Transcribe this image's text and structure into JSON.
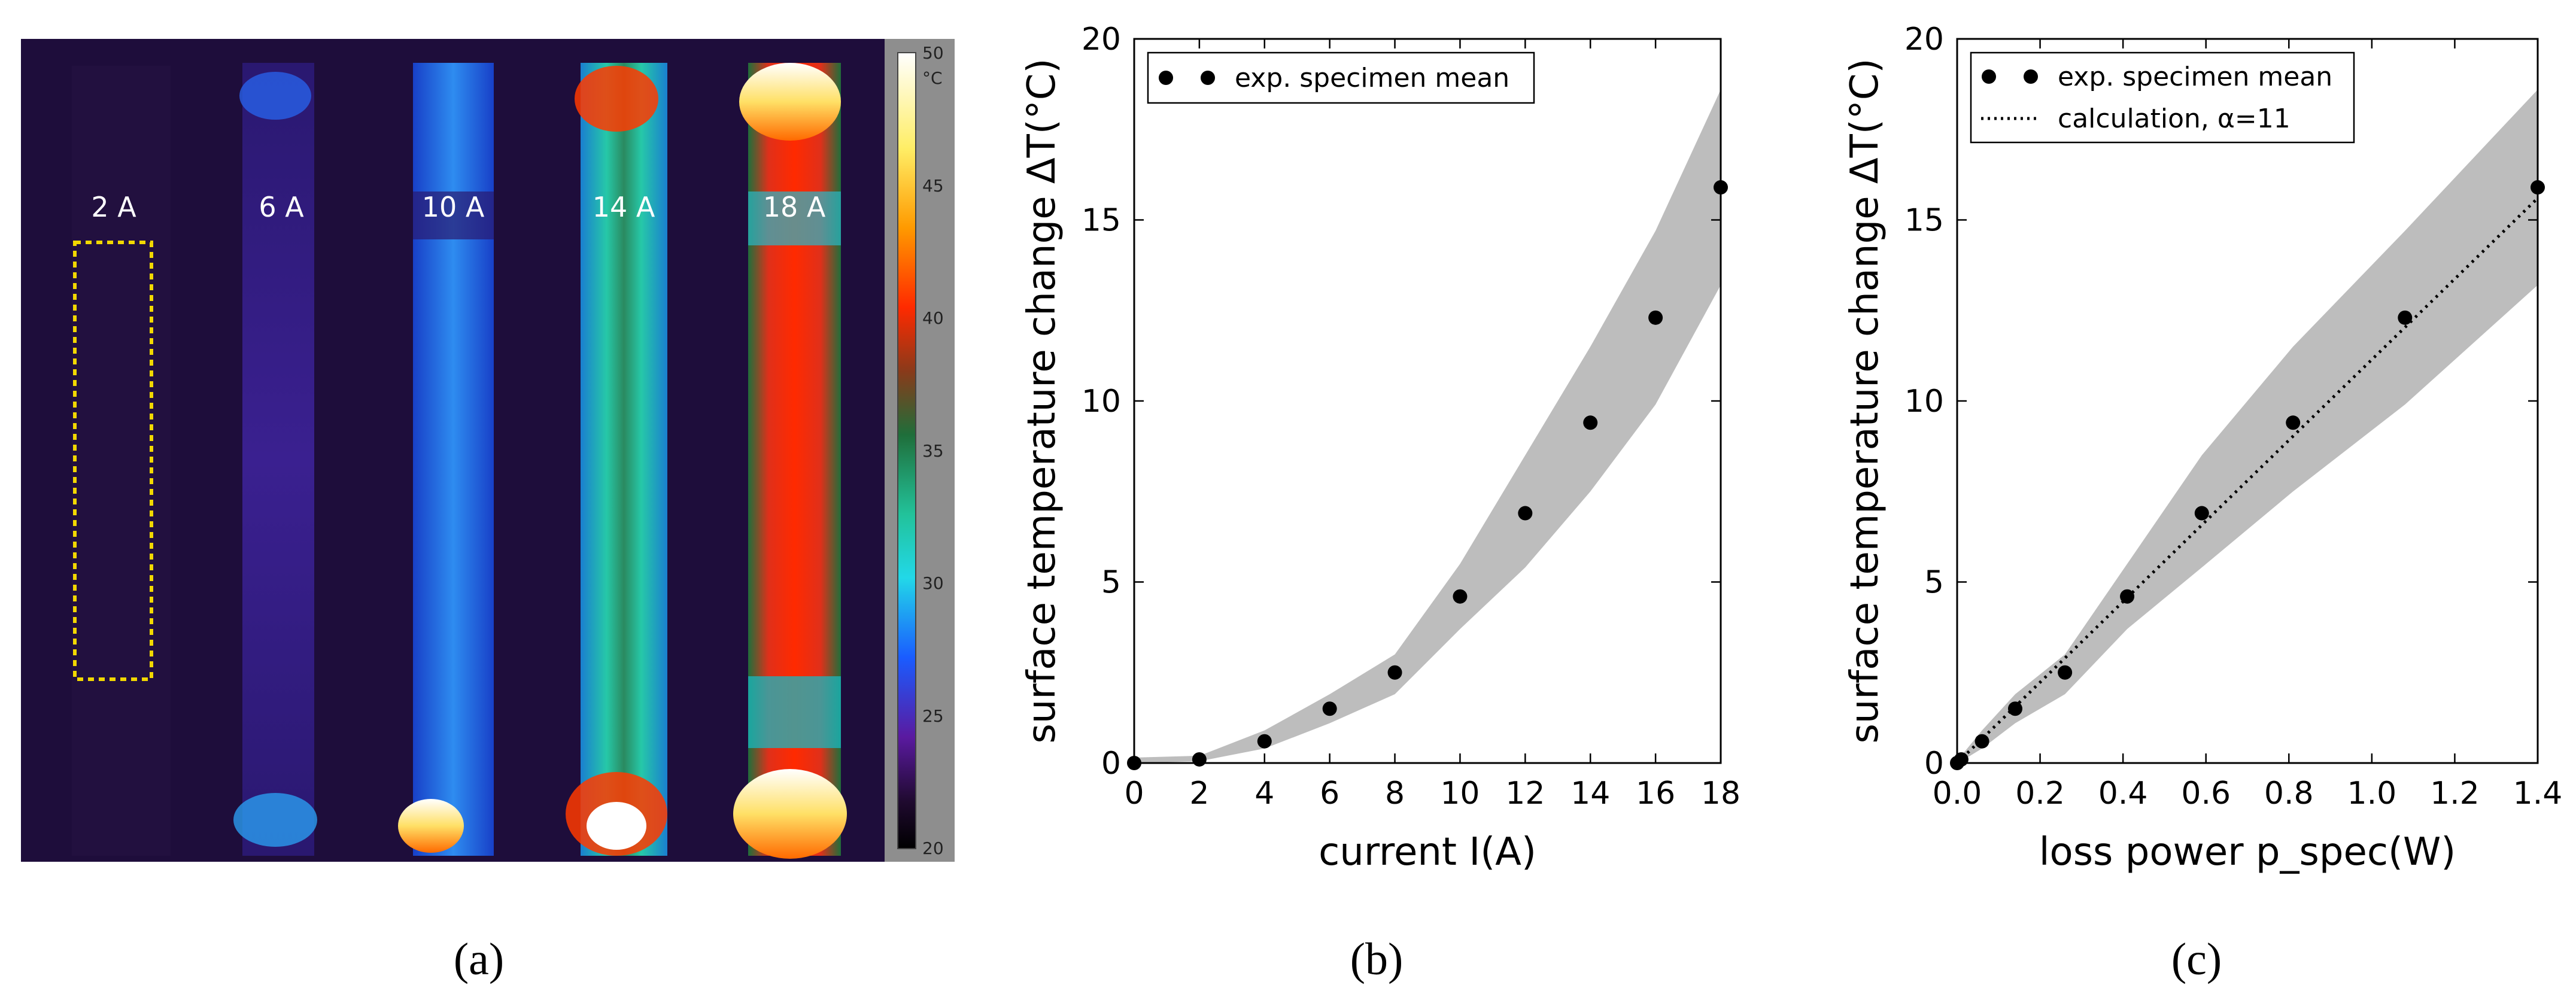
{
  "panel_a": {
    "currents": [
      "2 A",
      "6 A",
      "10 A",
      "14 A",
      "18 A"
    ],
    "colorbar": {
      "ticks": [
        "50",
        "45",
        "40",
        "35",
        "30",
        "25",
        "20"
      ],
      "unit": "°C"
    },
    "caption": "(a)"
  },
  "chart_data": [
    {
      "type": "scatter",
      "caption": "(b)",
      "xlabel": "current I(A)",
      "ylabel": "surface temperature change ΔT(°C)",
      "xlim": [
        0,
        18
      ],
      "ylim": [
        0,
        20
      ],
      "xticks": [
        "0",
        "2",
        "4",
        "6",
        "8",
        "10",
        "12",
        "14",
        "16",
        "18"
      ],
      "yticks": [
        "0",
        "5",
        "10",
        "15",
        "20"
      ],
      "legend": [
        "exp. specimen mean"
      ],
      "series": [
        {
          "name": "exp. specimen mean",
          "x": [
            0,
            2,
            4,
            6,
            8,
            10,
            12,
            14,
            16,
            18
          ],
          "y": [
            0.0,
            0.1,
            0.6,
            1.5,
            2.5,
            4.6,
            6.9,
            9.4,
            12.3,
            15.9
          ]
        }
      ],
      "band": {
        "x": [
          0,
          2,
          4,
          6,
          8,
          10,
          12,
          14,
          16,
          18
        ],
        "upper": [
          0.15,
          0.2,
          0.9,
          1.9,
          3.0,
          5.5,
          8.5,
          11.5,
          14.7,
          18.6
        ],
        "lower": [
          0.0,
          0.05,
          0.4,
          1.1,
          1.9,
          3.7,
          5.4,
          7.5,
          9.9,
          13.2
        ]
      }
    },
    {
      "type": "scatter",
      "caption": "(c)",
      "xlabel": "loss power p_spec(W)",
      "ylabel": "surface temperature change ΔT(°C)",
      "xlim": [
        0.0,
        1.4
      ],
      "ylim": [
        0,
        20
      ],
      "xticks": [
        "0.0",
        "0.2",
        "0.4",
        "0.6",
        "0.8",
        "1.0",
        "1.2",
        "1.4"
      ],
      "yticks": [
        "0",
        "5",
        "10",
        "15",
        "20"
      ],
      "legend": [
        "exp. specimen mean",
        "calculation, α=11"
      ],
      "series": [
        {
          "name": "exp. specimen mean",
          "x": [
            0.0,
            0.01,
            0.06,
            0.14,
            0.26,
            0.41,
            0.59,
            0.81,
            1.08,
            1.4
          ],
          "y": [
            0.0,
            0.1,
            0.6,
            1.5,
            2.5,
            4.6,
            6.9,
            9.4,
            12.3,
            15.9
          ]
        },
        {
          "name": "calculation, α=11",
          "style": "dotted",
          "x": [
            0.0,
            1.4
          ],
          "y": [
            0.0,
            15.6
          ]
        }
      ],
      "band": {
        "x": [
          0.0,
          0.01,
          0.06,
          0.14,
          0.26,
          0.41,
          0.59,
          0.81,
          1.08,
          1.4
        ],
        "upper": [
          0.15,
          0.2,
          0.9,
          1.9,
          3.0,
          5.5,
          8.5,
          11.5,
          14.7,
          18.6
        ],
        "lower": [
          0.0,
          0.05,
          0.4,
          1.1,
          1.9,
          3.7,
          5.4,
          7.5,
          9.9,
          13.2
        ]
      }
    }
  ]
}
